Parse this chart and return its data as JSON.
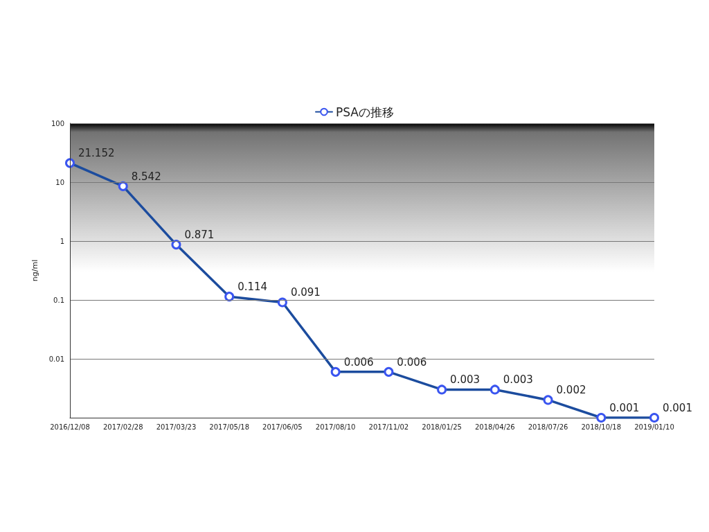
{
  "chart_data": {
    "type": "line",
    "ylabel": "ng/ml",
    "categories": [
      "2016/12/08",
      "2017/02/28",
      "2017/03/23",
      "2017/05/18",
      "2017/06/05",
      "2017/08/10",
      "2017/11/02",
      "2018/01/25",
      "2018/04/26",
      "2018/07/26",
      "2018/10/18",
      "2019/01/10"
    ],
    "series": [
      {
        "name": "PSAの推移",
        "color": "#1c4c9e",
        "values": [
          21.152,
          8.542,
          0.871,
          0.114,
          0.091,
          0.006,
          0.006,
          0.003,
          0.003,
          0.002,
          0.001,
          0.001
        ]
      }
    ],
    "log": "y",
    "ylim": [
      0.001,
      100
    ],
    "yticks": [
      0.01,
      0.1,
      1,
      10,
      100
    ],
    "bands": [
      {
        "axis": "y",
        "from": 0.3,
        "to": 100,
        "color": "#000000"
      }
    ],
    "grid": "y",
    "legend": "top",
    "marker": "circle",
    "line_style": "solid",
    "data_labels": true
  }
}
